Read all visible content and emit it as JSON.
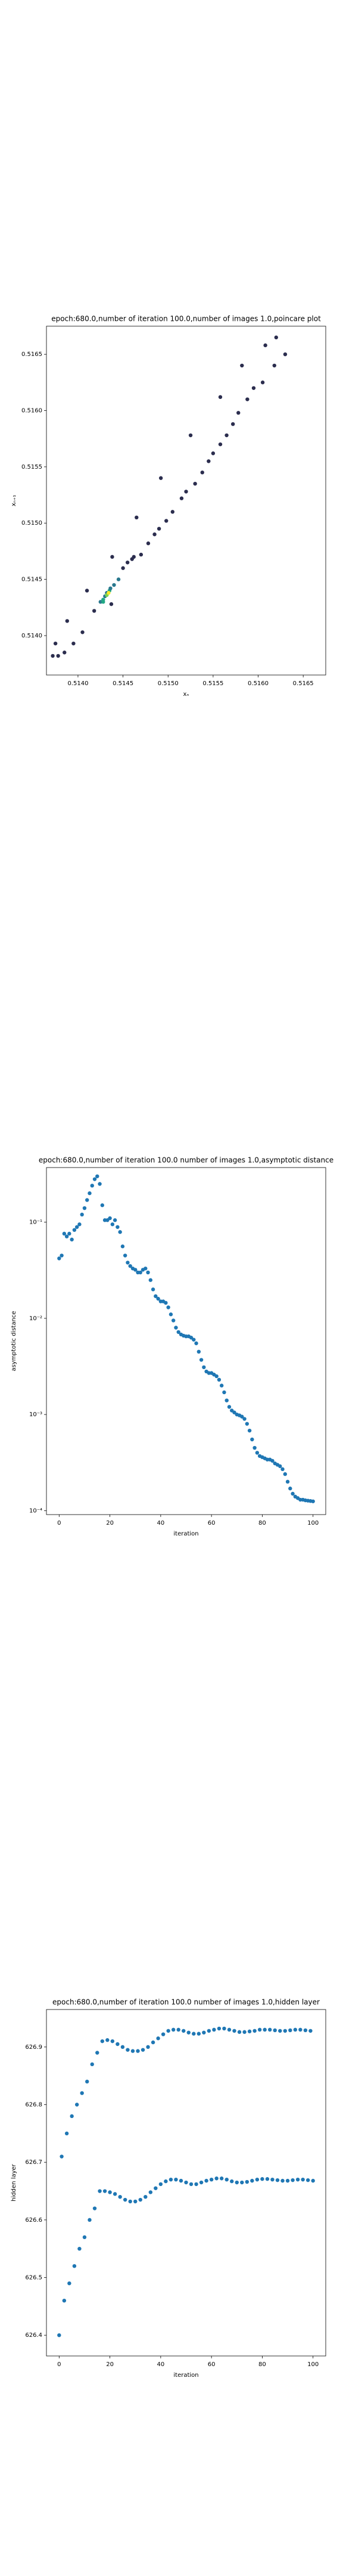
{
  "chart_data": [
    {
      "type": "scatter",
      "title": "epoch:680.0,number of iteration 100.0,number of images 1.0,poincare plot",
      "xlabel": "xₙ",
      "ylabel": "xₙ₊₁",
      "x": [
        0.51372,
        0.51378,
        0.51375,
        0.51385,
        0.51388,
        0.51395,
        0.51405,
        0.5141,
        0.51418,
        0.51425,
        0.51428,
        0.5143,
        0.51432,
        0.51435,
        0.51437,
        0.5144,
        0.51438,
        0.51445,
        0.5145,
        0.51455,
        0.5146,
        0.51462,
        0.51465,
        0.5147,
        0.51478,
        0.51485,
        0.5149,
        0.51492,
        0.51498,
        0.51505,
        0.51515,
        0.5152,
        0.51525,
        0.5153,
        0.51538,
        0.51545,
        0.5155,
        0.51558,
        0.51558,
        0.51565,
        0.51572,
        0.51578,
        0.51582,
        0.51588,
        0.51595,
        0.51605,
        0.51608,
        0.51618,
        0.5162,
        0.5163,
        0.51432,
        0.51434,
        0.51428,
        0.51436
      ],
      "values": [
        0.51382,
        0.51382,
        0.51393,
        0.51385,
        0.51413,
        0.51393,
        0.51403,
        0.5144,
        0.51422,
        0.5143,
        0.51432,
        0.51435,
        0.51438,
        0.5144,
        0.51428,
        0.51445,
        0.5147,
        0.5145,
        0.5146,
        0.51465,
        0.51468,
        0.5147,
        0.51505,
        0.51472,
        0.51482,
        0.5149,
        0.51495,
        0.5154,
        0.51502,
        0.5151,
        0.51522,
        0.51528,
        0.51578,
        0.51535,
        0.51545,
        0.51555,
        0.51562,
        0.5157,
        0.51612,
        0.51578,
        0.51588,
        0.51598,
        0.5164,
        0.5161,
        0.5162,
        0.51625,
        0.51658,
        0.5164,
        0.51665,
        0.5165,
        0.51436,
        0.51438,
        0.5143,
        0.51442
      ],
      "colors": [
        "#2b2d4e",
        "#2b2d4e",
        "#2b2d4e",
        "#2b2d4e",
        "#2b2d4e",
        "#2b2d4e",
        "#2b2d4e",
        "#2b2d4e",
        "#2b2d4e",
        "#2a788e",
        "#22a884",
        "#2a788e",
        "#2a788e",
        "#22a884",
        "#2b2d4e",
        "#2a788e",
        "#2b2d4e",
        "#2a788e",
        "#2b2d4e",
        "#2b2d4e",
        "#2b2d4e",
        "#2b2d4e",
        "#2b2d4e",
        "#2b2d4e",
        "#2b2d4e",
        "#2b2d4e",
        "#2b2d4e",
        "#2b2d4e",
        "#2b2d4e",
        "#2b2d4e",
        "#2b2d4e",
        "#2b2d4e",
        "#2b2d4e",
        "#2b2d4e",
        "#2b2d4e",
        "#2b2d4e",
        "#2b2d4e",
        "#2b2d4e",
        "#2b2d4e",
        "#2b2d4e",
        "#2b2d4e",
        "#2b2d4e",
        "#2b2d4e",
        "#2b2d4e",
        "#2b2d4e",
        "#2b2d4e",
        "#2b2d4e",
        "#2b2d4e",
        "#2b2d4e",
        "#2b2d4e",
        "#7ad151",
        "#fde725",
        "#22a884",
        "#2a788e"
      ],
      "xlim": [
        0.51365,
        0.51675
      ],
      "ylim": [
        0.51365,
        0.51675
      ],
      "xticks": [
        {
          "value": 0.514,
          "label": "0.5140"
        },
        0.5145,
        {
          "value": 0.515,
          "label": "0.5150"
        },
        0.5155,
        {
          "value": 0.516,
          "label": "0.5160"
        },
        0.5165
      ],
      "yticks": [
        {
          "value": 0.514,
          "label": "0.5140"
        },
        0.5145,
        {
          "value": 0.515,
          "label": "0.5150"
        },
        0.5155,
        {
          "value": 0.516,
          "label": "0.5160"
        },
        0.5165
      ]
    },
    {
      "type": "scatter",
      "title": "epoch:680.0,number of iteration 100.0  number of images 1.0,asymptotic distance",
      "xlabel": "iteration",
      "ylabel": "asymptotic distance",
      "log_y": true,
      "color": "#1f77b4",
      "x": [
        0,
        1,
        2,
        3,
        4,
        5,
        6,
        7,
        8,
        9,
        10,
        11,
        12,
        13,
        14,
        15,
        16,
        17,
        18,
        19,
        20,
        21,
        22,
        23,
        24,
        25,
        26,
        27,
        28,
        29,
        30,
        31,
        32,
        33,
        34,
        35,
        36,
        37,
        38,
        39,
        40,
        41,
        42,
        43,
        44,
        45,
        46,
        47,
        48,
        49,
        50,
        51,
        52,
        53,
        54,
        55,
        56,
        57,
        58,
        59,
        60,
        61,
        62,
        63,
        64,
        65,
        66,
        67,
        68,
        69,
        70,
        71,
        72,
        73,
        74,
        75,
        76,
        77,
        78,
        79,
        80,
        81,
        82,
        83,
        84,
        85,
        86,
        87,
        88,
        89,
        90,
        91,
        92,
        93,
        94,
        95,
        96,
        97,
        98,
        99,
        100
      ],
      "values": [
        0.042,
        0.045,
        0.076,
        0.071,
        0.076,
        0.066,
        0.083,
        0.089,
        0.095,
        0.12,
        0.14,
        0.17,
        0.2,
        0.24,
        0.28,
        0.3,
        0.25,
        0.15,
        0.105,
        0.105,
        0.11,
        0.095,
        0.105,
        0.089,
        0.079,
        0.056,
        0.045,
        0.038,
        0.035,
        0.033,
        0.032,
        0.03,
        0.03,
        0.032,
        0.033,
        0.03,
        0.025,
        0.02,
        0.017,
        0.016,
        0.015,
        0.015,
        0.0145,
        0.013,
        0.011,
        0.0095,
        0.008,
        0.0072,
        0.0068,
        0.0066,
        0.0065,
        0.0065,
        0.0063,
        0.006,
        0.0055,
        0.0045,
        0.0037,
        0.0031,
        0.0028,
        0.0027,
        0.0027,
        0.0026,
        0.0025,
        0.0023,
        0.002,
        0.0017,
        0.0014,
        0.0012,
        0.0011,
        0.00105,
        0.001,
        0.00098,
        0.00095,
        0.0009,
        0.0008,
        0.00068,
        0.00055,
        0.00045,
        0.0004,
        0.00037,
        0.00036,
        0.00035,
        0.00034,
        0.00034,
        0.00033,
        0.00031,
        0.0003,
        0.00029,
        0.00027,
        0.00024,
        0.0002,
        0.00017,
        0.00015,
        0.00014,
        0.000135,
        0.00013,
        0.00013,
        0.000128,
        0.000127,
        0.000126,
        0.000125
      ],
      "xlim": [
        -5,
        105
      ],
      "ylim": [
        9.1e-05,
        0.37
      ],
      "xticks": [
        0,
        20,
        40,
        60,
        80,
        100
      ],
      "yticks": [
        {
          "value": 0.1,
          "label": "10⁻¹"
        },
        {
          "value": 0.01,
          "label": "10⁻²"
        },
        {
          "value": 0.001,
          "label": "10⁻³"
        },
        {
          "value": 0.0001,
          "label": "10⁻⁴"
        }
      ]
    },
    {
      "type": "scatter",
      "title": "epoch:680.0,number of iteration 100.0  number of images 1.0,hidden layer",
      "xlabel": "iteration",
      "ylabel": "hidden layer",
      "color": "#1f77b4",
      "x": [
        0,
        1,
        2,
        3,
        4,
        5,
        6,
        7,
        8,
        9,
        10,
        11,
        12,
        13,
        14,
        15,
        16,
        17,
        18,
        19,
        20,
        21,
        22,
        23,
        24,
        25,
        26,
        27,
        28,
        29,
        30,
        31,
        32,
        33,
        34,
        35,
        36,
        37,
        38,
        39,
        40,
        41,
        42,
        43,
        44,
        45,
        46,
        47,
        48,
        49,
        50,
        51,
        52,
        53,
        54,
        55,
        56,
        57,
        58,
        59,
        60,
        61,
        62,
        63,
        64,
        65,
        66,
        67,
        68,
        69,
        70,
        71,
        72,
        73,
        74,
        75,
        76,
        77,
        78,
        79,
        80,
        81,
        82,
        83,
        84,
        85,
        86,
        87,
        88,
        89,
        90,
        91,
        92,
        93,
        94,
        95,
        96,
        97,
        98,
        99,
        100
      ],
      "values": [
        626.4,
        626.71,
        626.46,
        626.75,
        626.49,
        626.78,
        626.52,
        626.8,
        626.55,
        626.82,
        626.57,
        626.84,
        626.6,
        626.87,
        626.62,
        626.89,
        626.65,
        626.91,
        626.65,
        626.912,
        626.648,
        626.91,
        626.645,
        626.905,
        626.64,
        626.9,
        626.635,
        626.895,
        626.632,
        626.893,
        626.632,
        626.893,
        626.635,
        626.895,
        626.64,
        626.9,
        626.648,
        626.908,
        626.655,
        626.915,
        626.662,
        626.922,
        626.667,
        626.928,
        626.67,
        626.93,
        626.67,
        626.93,
        626.668,
        626.928,
        626.665,
        626.925,
        626.662,
        626.923,
        626.662,
        626.923,
        626.665,
        626.925,
        626.668,
        626.928,
        626.67,
        626.93,
        626.672,
        626.932,
        626.672,
        626.932,
        626.67,
        626.93,
        626.667,
        626.928,
        626.665,
        626.926,
        626.665,
        626.926,
        626.666,
        626.927,
        626.668,
        626.928,
        626.67,
        626.93,
        626.671,
        626.93,
        626.671,
        626.93,
        626.67,
        626.929,
        626.669,
        626.928,
        626.668,
        626.928,
        626.668,
        626.929,
        626.669,
        626.93,
        626.67,
        626.93,
        626.67,
        626.929,
        626.669,
        626.928,
        626.668
      ],
      "xlim": [
        -5,
        105
      ],
      "ylim": [
        626.364,
        626.965
      ],
      "xticks": [
        0,
        20,
        40,
        60,
        80,
        100
      ],
      "yticks": [
        626.4,
        626.5,
        626.6,
        626.7,
        626.8,
        626.9
      ]
    }
  ]
}
